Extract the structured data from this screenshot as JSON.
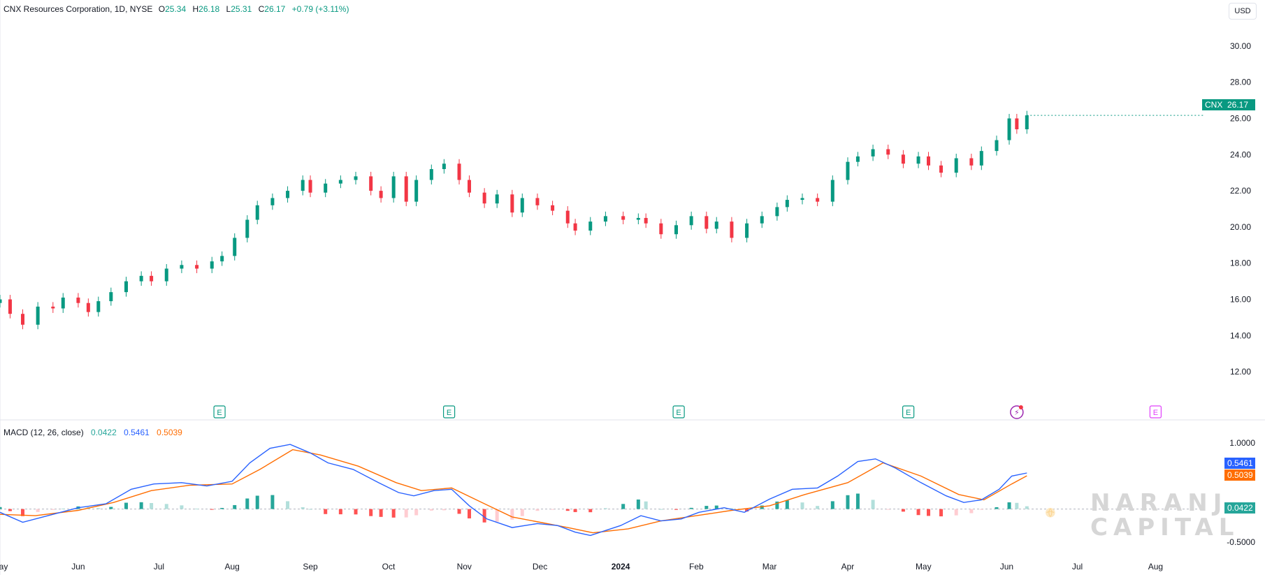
{
  "header": {
    "symbol_title": "CNX Resources Corporation, 1D, NYSE",
    "open_label": "O",
    "open": "25.34",
    "high_label": "H",
    "high": "26.18",
    "low_label": "L",
    "low": "25.31",
    "close_label": "C",
    "close": "26.17",
    "change": "+0.79 (+3.11%)"
  },
  "currency_button": "USD",
  "price_tag": {
    "symbol": "CNX",
    "value": "26.17",
    "color": "#089981"
  },
  "macd_header": {
    "label": "MACD (12, 26, close)",
    "histogram": "0.0422",
    "macd": "0.5461",
    "signal": "0.5039"
  },
  "macd_tags": {
    "macd": "0.5461",
    "signal": "0.5039",
    "histogram": "0.0422"
  },
  "event_markers": [
    {
      "type": "earnings",
      "label": "E",
      "date": "2023-07-27"
    },
    {
      "type": "earnings",
      "label": "E",
      "date": "2023-10-26"
    },
    {
      "type": "earnings",
      "label": "E",
      "date": "2024-01-25"
    },
    {
      "type": "earnings",
      "label": "E",
      "date": "2024-04-25"
    },
    {
      "type": "flash",
      "label": "⚡",
      "date": "2024-06-07"
    },
    {
      "type": "earnings-upcoming",
      "label": "E",
      "date": "2024-08-01"
    }
  ],
  "watermark": {
    "line1": "NARANJ",
    "line2": "CAPITAL"
  },
  "colors": {
    "up": "#089981",
    "down": "#f23645",
    "macd": "#2962ff",
    "signal": "#ff6d00",
    "hist_up_strong": "#26a69a",
    "hist_up_weak": "#b2dfdb",
    "hist_down_strong": "#ff5252",
    "hist_down_weak": "#ffcdd2",
    "marker_upcoming": "#e040fb"
  },
  "chart_data": [
    {
      "type": "candlestick",
      "title": "CNX Resources Corporation, 1D, NYSE",
      "y_axis_ticks": [
        "30.00",
        "28.00",
        "26.00",
        "24.00",
        "22.00",
        "20.00",
        "18.00",
        "16.00",
        "14.00",
        "12.00"
      ],
      "ylim": [
        11,
        31
      ],
      "xlim": [
        "2023-05-01",
        "2024-08-20"
      ],
      "x_axis_ticks": [
        {
          "label": "May",
          "date": "2023-05-01"
        },
        {
          "label": "Jun",
          "date": "2023-06-01"
        },
        {
          "label": "Jul",
          "date": "2023-07-03"
        },
        {
          "label": "Aug",
          "date": "2023-08-01"
        },
        {
          "label": "Sep",
          "date": "2023-09-01"
        },
        {
          "label": "Oct",
          "date": "2023-10-02"
        },
        {
          "label": "Nov",
          "date": "2023-11-01"
        },
        {
          "label": "Dec",
          "date": "2023-12-01"
        },
        {
          "label": "2024",
          "date": "2024-01-02"
        },
        {
          "label": "Feb",
          "date": "2024-02-01"
        },
        {
          "label": "Mar",
          "date": "2024-03-01"
        },
        {
          "label": "Apr",
          "date": "2024-04-01"
        },
        {
          "label": "May",
          "date": "2024-05-01"
        },
        {
          "label": "Jun",
          "date": "2024-06-03"
        },
        {
          "label": "Jul",
          "date": "2024-07-01"
        },
        {
          "label": "Aug",
          "date": "2024-08-01"
        }
      ],
      "close_series": [
        [
          "2023-05-01",
          16.0
        ],
        [
          "2023-05-05",
          15.2
        ],
        [
          "2023-05-10",
          14.6
        ],
        [
          "2023-05-16",
          15.6
        ],
        [
          "2023-05-22",
          15.5
        ],
        [
          "2023-05-26",
          16.1
        ],
        [
          "2023-06-01",
          15.8
        ],
        [
          "2023-06-05",
          15.3
        ],
        [
          "2023-06-09",
          15.9
        ],
        [
          "2023-06-14",
          16.4
        ],
        [
          "2023-06-20",
          17.0
        ],
        [
          "2023-06-26",
          17.3
        ],
        [
          "2023-06-30",
          17.0
        ],
        [
          "2023-07-06",
          17.7
        ],
        [
          "2023-07-12",
          17.9
        ],
        [
          "2023-07-18",
          17.7
        ],
        [
          "2023-07-24",
          18.1
        ],
        [
          "2023-07-28",
          18.4
        ],
        [
          "2023-08-02",
          19.4
        ],
        [
          "2023-08-07",
          20.4
        ],
        [
          "2023-08-11",
          21.2
        ],
        [
          "2023-08-17",
          21.6
        ],
        [
          "2023-08-23",
          22.0
        ],
        [
          "2023-08-29",
          22.6
        ],
        [
          "2023-09-01",
          21.9
        ],
        [
          "2023-09-07",
          22.4
        ],
        [
          "2023-09-13",
          22.6
        ],
        [
          "2023-09-19",
          22.8
        ],
        [
          "2023-09-25",
          22.0
        ],
        [
          "2023-09-29",
          21.6
        ],
        [
          "2023-10-04",
          22.8
        ],
        [
          "2023-10-09",
          21.4
        ],
        [
          "2023-10-13",
          22.6
        ],
        [
          "2023-10-19",
          23.2
        ],
        [
          "2023-10-24",
          23.5
        ],
        [
          "2023-10-30",
          22.6
        ],
        [
          "2023-11-03",
          21.9
        ],
        [
          "2023-11-09",
          21.3
        ],
        [
          "2023-11-14",
          21.8
        ],
        [
          "2023-11-20",
          20.8
        ],
        [
          "2023-11-24",
          21.6
        ],
        [
          "2023-11-30",
          21.2
        ],
        [
          "2023-12-06",
          20.9
        ],
        [
          "2023-12-12",
          20.2
        ],
        [
          "2023-12-15",
          19.8
        ],
        [
          "2023-12-21",
          20.3
        ],
        [
          "2023-12-27",
          20.6
        ],
        [
          "2024-01-03",
          20.4
        ],
        [
          "2024-01-09",
          20.5
        ],
        [
          "2024-01-12",
          20.2
        ],
        [
          "2024-01-18",
          19.6
        ],
        [
          "2024-01-24",
          20.1
        ],
        [
          "2024-01-30",
          20.6
        ],
        [
          "2024-02-05",
          19.9
        ],
        [
          "2024-02-09",
          20.3
        ],
        [
          "2024-02-15",
          19.4
        ],
        [
          "2024-02-21",
          20.2
        ],
        [
          "2024-02-27",
          20.6
        ],
        [
          "2024-03-04",
          21.1
        ],
        [
          "2024-03-08",
          21.5
        ],
        [
          "2024-03-14",
          21.6
        ],
        [
          "2024-03-20",
          21.4
        ],
        [
          "2024-03-26",
          22.6
        ],
        [
          "2024-04-01",
          23.6
        ],
        [
          "2024-04-05",
          23.9
        ],
        [
          "2024-04-11",
          24.3
        ],
        [
          "2024-04-17",
          24.0
        ],
        [
          "2024-04-23",
          23.5
        ],
        [
          "2024-04-29",
          23.9
        ],
        [
          "2024-05-03",
          23.4
        ],
        [
          "2024-05-08",
          23.0
        ],
        [
          "2024-05-14",
          23.8
        ],
        [
          "2024-05-20",
          23.4
        ],
        [
          "2024-05-24",
          24.2
        ],
        [
          "2024-05-30",
          24.8
        ],
        [
          "2024-06-04",
          26.0
        ],
        [
          "2024-06-07",
          25.4
        ],
        [
          "2024-06-11",
          26.17
        ]
      ]
    },
    {
      "type": "line",
      "title": "MACD (12, 26, close)",
      "y_axis_ticks": [
        "1.0000",
        "0.5000",
        "-0.5000"
      ],
      "ylim": [
        -0.65,
        1.15
      ],
      "series": [
        {
          "name": "MACD",
          "values": [
            [
              "2023-05-01",
              -0.05
            ],
            [
              "2023-05-10",
              -0.2
            ],
            [
              "2023-05-20",
              -0.1
            ],
            [
              "2023-06-01",
              0.02
            ],
            [
              "2023-06-12",
              0.08
            ],
            [
              "2023-06-22",
              0.3
            ],
            [
              "2023-07-01",
              0.38
            ],
            [
              "2023-07-12",
              0.4
            ],
            [
              "2023-07-22",
              0.35
            ],
            [
              "2023-08-01",
              0.42
            ],
            [
              "2023-08-08",
              0.7
            ],
            [
              "2023-08-16",
              0.92
            ],
            [
              "2023-08-24",
              0.98
            ],
            [
              "2023-09-01",
              0.85
            ],
            [
              "2023-09-08",
              0.7
            ],
            [
              "2023-09-18",
              0.6
            ],
            [
              "2023-09-28",
              0.4
            ],
            [
              "2023-10-06",
              0.25
            ],
            [
              "2023-10-12",
              0.2
            ],
            [
              "2023-10-20",
              0.28
            ],
            [
              "2023-10-27",
              0.3
            ],
            [
              "2023-11-03",
              0.05
            ],
            [
              "2023-11-10",
              -0.15
            ],
            [
              "2023-11-20",
              -0.28
            ],
            [
              "2023-11-30",
              -0.22
            ],
            [
              "2023-12-08",
              -0.25
            ],
            [
              "2023-12-15",
              -0.35
            ],
            [
              "2023-12-21",
              -0.4
            ],
            [
              "2024-01-02",
              -0.25
            ],
            [
              "2024-01-10",
              -0.1
            ],
            [
              "2024-01-18",
              -0.18
            ],
            [
              "2024-01-26",
              -0.15
            ],
            [
              "2024-02-02",
              -0.05
            ],
            [
              "2024-02-12",
              0.02
            ],
            [
              "2024-02-20",
              -0.05
            ],
            [
              "2024-03-01",
              0.15
            ],
            [
              "2024-03-10",
              0.3
            ],
            [
              "2024-03-20",
              0.32
            ],
            [
              "2024-03-28",
              0.5
            ],
            [
              "2024-04-05",
              0.72
            ],
            [
              "2024-04-12",
              0.76
            ],
            [
              "2024-04-20",
              0.62
            ],
            [
              "2024-04-30",
              0.4
            ],
            [
              "2024-05-10",
              0.2
            ],
            [
              "2024-05-17",
              0.1
            ],
            [
              "2024-05-24",
              0.14
            ],
            [
              "2024-05-31",
              0.3
            ],
            [
              "2024-06-05",
              0.5
            ],
            [
              "2024-06-11",
              0.5461
            ]
          ]
        },
        {
          "name": "Signal",
          "values": [
            [
              "2023-05-01",
              -0.08
            ],
            [
              "2023-05-15",
              -0.1
            ],
            [
              "2023-06-01",
              -0.02
            ],
            [
              "2023-06-15",
              0.1
            ],
            [
              "2023-06-30",
              0.28
            ],
            [
              "2023-07-15",
              0.36
            ],
            [
              "2023-08-01",
              0.38
            ],
            [
              "2023-08-12",
              0.6
            ],
            [
              "2023-08-25",
              0.9
            ],
            [
              "2023-09-05",
              0.82
            ],
            [
              "2023-09-20",
              0.65
            ],
            [
              "2023-10-05",
              0.4
            ],
            [
              "2023-10-15",
              0.28
            ],
            [
              "2023-10-27",
              0.32
            ],
            [
              "2023-11-08",
              0.1
            ],
            [
              "2023-11-20",
              -0.12
            ],
            [
              "2023-12-01",
              -0.2
            ],
            [
              "2023-12-12",
              -0.28
            ],
            [
              "2023-12-22",
              -0.36
            ],
            [
              "2024-01-05",
              -0.3
            ],
            [
              "2024-01-18",
              -0.18
            ],
            [
              "2024-02-01",
              -0.1
            ],
            [
              "2024-02-15",
              -0.02
            ],
            [
              "2024-03-01",
              0.05
            ],
            [
              "2024-03-15",
              0.22
            ],
            [
              "2024-04-01",
              0.4
            ],
            [
              "2024-04-15",
              0.7
            ],
            [
              "2024-04-30",
              0.5
            ],
            [
              "2024-05-15",
              0.22
            ],
            [
              "2024-05-25",
              0.14
            ],
            [
              "2024-06-05",
              0.38
            ],
            [
              "2024-06-11",
              0.5039
            ]
          ]
        }
      ]
    }
  ]
}
